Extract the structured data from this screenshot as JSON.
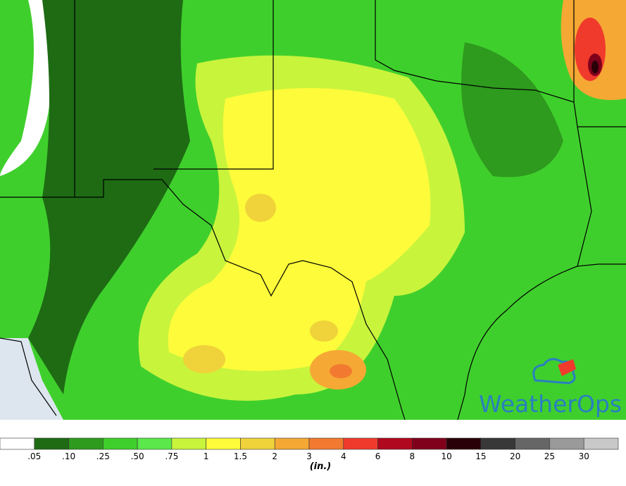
{
  "map": {
    "logo": "WeatherOps"
  },
  "legend": {
    "unit": "(in.)",
    "labels": [
      ".05",
      ".10",
      ".25",
      ".50",
      ".75",
      "1",
      "1.5",
      "2",
      "3",
      "4",
      "6",
      "8",
      "10",
      "15",
      "20",
      "25",
      "30"
    ],
    "colors": [
      "#ffffff",
      "#1e6b14",
      "#2e9a1e",
      "#3fcf2c",
      "#5ae84a",
      "#c8f43c",
      "#fdfb3a",
      "#f0d23a",
      "#f5a834",
      "#f27a30",
      "#f03a2c",
      "#b0081e",
      "#80001c",
      "#2a0008",
      "#383838",
      "#666666",
      "#9a9a9a",
      "#c8c8c8"
    ]
  }
}
